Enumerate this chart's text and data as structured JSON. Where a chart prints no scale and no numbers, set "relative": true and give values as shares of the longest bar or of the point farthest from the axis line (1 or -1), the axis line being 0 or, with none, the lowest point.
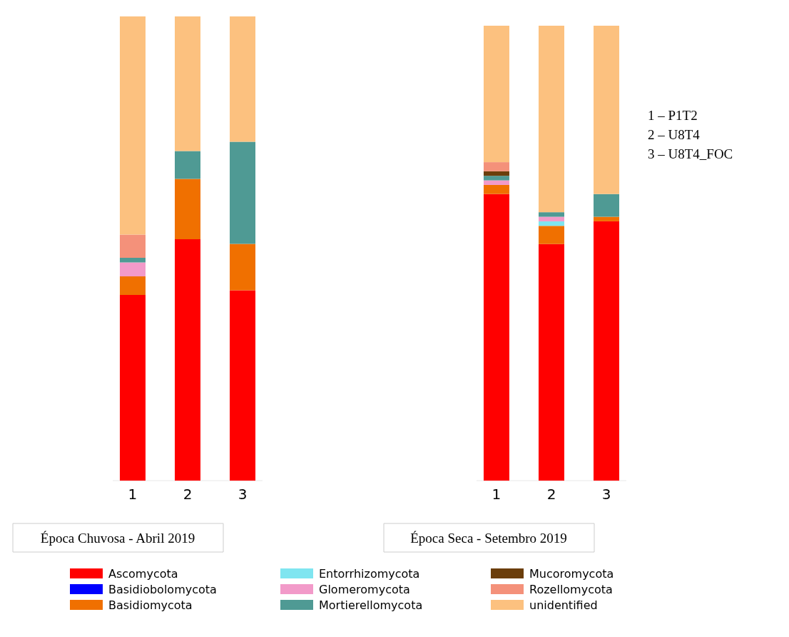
{
  "chart_data": [
    {
      "type": "bar",
      "stacked": true,
      "relative": true,
      "legend": "bottom",
      "xlabel": "Época Chuvosa - Abril 2019",
      "categories": [
        "1",
        "2",
        "3"
      ],
      "series": [
        {
          "name": "Ascomycota",
          "color": "#ff0000",
          "values": [
            0.4,
            0.52,
            0.41
          ]
        },
        {
          "name": "Basidiobolomycota",
          "color": "#0000ff",
          "values": [
            0,
            0,
            0
          ]
        },
        {
          "name": "Basidiomycota",
          "color": "#f07000",
          "values": [
            0.04,
            0.13,
            0.1
          ]
        },
        {
          "name": "Entorrhizomycota",
          "color": "#7fe5f0",
          "values": [
            0,
            0,
            0
          ]
        },
        {
          "name": "Glomeromycota",
          "color": "#f29ac9",
          "values": [
            0.03,
            0,
            0
          ]
        },
        {
          "name": "Mortierellomycota",
          "color": "#4f9a94",
          "values": [
            0.01,
            0.06,
            0.22
          ]
        },
        {
          "name": "Mucoromycota",
          "color": "#6b3e0b",
          "values": [
            0,
            0,
            0
          ]
        },
        {
          "name": "Rozellomycota",
          "color": "#f4917a",
          "values": [
            0.05,
            0,
            0
          ]
        },
        {
          "name": "unidentified",
          "color": "#fcc17f",
          "values": [
            0.47,
            0.29,
            0.27
          ]
        }
      ]
    },
    {
      "type": "bar",
      "stacked": true,
      "relative": true,
      "xlabel": "Época Seca - Setembro 2019",
      "categories": [
        "1",
        "2",
        "3"
      ],
      "annotations": [
        "1 – P1T2",
        "2 – U8T4",
        "3 – U8T4_FOC"
      ],
      "series": [
        {
          "color": "#ff0000",
          "values": [
            0.63,
            0.52,
            0.57
          ]
        },
        {
          "color": "#f07000",
          "values": [
            0.02,
            0.04,
            0.01
          ]
        },
        {
          "color": "#7fe5f0",
          "values": [
            0,
            0.01,
            0
          ]
        },
        {
          "color": "#f29ac9",
          "values": [
            0.01,
            0.01,
            0
          ]
        },
        {
          "color": "#4f9a94",
          "values": [
            0.01,
            0.01,
            0.05
          ]
        },
        {
          "color": "#6b3e0b",
          "values": [
            0.01,
            0,
            0
          ]
        },
        {
          "color": "#f4917a",
          "values": [
            0.02,
            0,
            0
          ]
        },
        {
          "color": "#fcc17f",
          "values": [
            0.3,
            0.41,
            0.37
          ]
        }
      ]
    }
  ]
}
